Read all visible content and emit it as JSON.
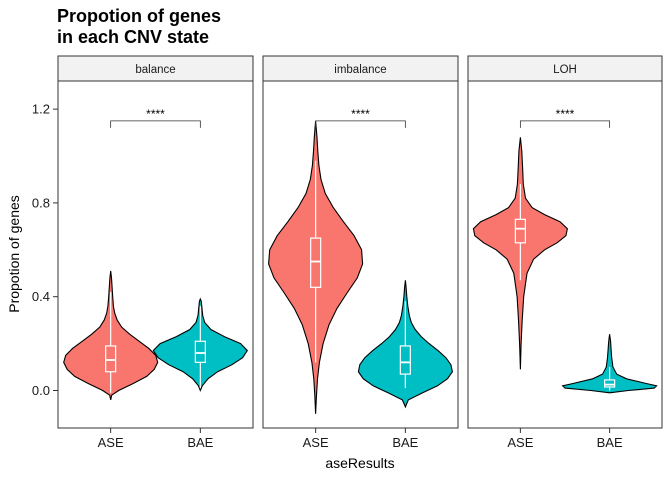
{
  "chart_data": {
    "type": "violin",
    "title_lines": [
      "Propotion of genes",
      "in each CNV state"
    ],
    "xlabel": "aseResults",
    "ylabel": "Propotion of genes",
    "ylim": [
      -0.16,
      1.32
    ],
    "yticks": [
      0.0,
      0.4,
      0.8,
      1.2
    ],
    "ytick_labels": [
      "0.0",
      "0.4",
      "0.8",
      "1.2"
    ],
    "categories": [
      "ASE",
      "BAE"
    ],
    "colors": {
      "ASE": "#F8766D",
      "BAE": "#00BFC4"
    },
    "panels": [
      {
        "name": "balance",
        "significance": {
          "label": "****",
          "y": 1.15,
          "drop": 0.03
        },
        "groups": [
          {
            "category": "ASE",
            "box": {
              "q1": 0.08,
              "median": 0.13,
              "q3": 0.19,
              "whisker_low": -0.01,
              "whisker_high": 0.42
            },
            "density": [
              [
                -0.04,
                0.0
              ],
              [
                -0.02,
                0.02
              ],
              [
                0.0,
                0.16
              ],
              [
                0.03,
                0.45
              ],
              [
                0.06,
                0.72
              ],
              [
                0.09,
                0.87
              ],
              [
                0.12,
                0.94
              ],
              [
                0.15,
                0.9
              ],
              [
                0.18,
                0.76
              ],
              [
                0.21,
                0.57
              ],
              [
                0.24,
                0.38
              ],
              [
                0.27,
                0.22
              ],
              [
                0.3,
                0.13
              ],
              [
                0.33,
                0.08
              ],
              [
                0.36,
                0.055
              ],
              [
                0.4,
                0.04
              ],
              [
                0.44,
                0.028
              ],
              [
                0.48,
                0.016
              ],
              [
                0.51,
                0.0
              ]
            ]
          },
          {
            "category": "BAE",
            "box": {
              "q1": 0.12,
              "median": 0.16,
              "q3": 0.21,
              "whisker_low": 0.01,
              "whisker_high": 0.36
            },
            "density": [
              [
                0.0,
                0.0
              ],
              [
                0.02,
                0.04
              ],
              [
                0.05,
                0.16
              ],
              [
                0.08,
                0.36
              ],
              [
                0.11,
                0.66
              ],
              [
                0.14,
                0.88
              ],
              [
                0.17,
                0.98
              ],
              [
                0.2,
                0.84
              ],
              [
                0.23,
                0.5
              ],
              [
                0.26,
                0.22
              ],
              [
                0.29,
                0.09
              ],
              [
                0.32,
                0.05
              ],
              [
                0.35,
                0.035
              ],
              [
                0.38,
                0.02
              ],
              [
                0.39,
                0.0
              ]
            ]
          }
        ]
      },
      {
        "name": "imbalance",
        "significance": {
          "label": "****",
          "y": 1.15,
          "drop": 0.03
        },
        "groups": [
          {
            "category": "ASE",
            "box": {
              "q1": 0.44,
              "median": 0.55,
              "q3": 0.65,
              "whisker_low": 0.12,
              "whisker_high": 0.98
            },
            "density": [
              [
                -0.1,
                0.0
              ],
              [
                -0.02,
                0.015
              ],
              [
                0.05,
                0.035
              ],
              [
                0.12,
                0.07
              ],
              [
                0.2,
                0.14
              ],
              [
                0.28,
                0.25
              ],
              [
                0.35,
                0.4
              ],
              [
                0.42,
                0.6
              ],
              [
                0.48,
                0.78
              ],
              [
                0.54,
                0.88
              ],
              [
                0.6,
                0.86
              ],
              [
                0.66,
                0.72
              ],
              [
                0.72,
                0.52
              ],
              [
                0.78,
                0.33
              ],
              [
                0.84,
                0.18
              ],
              [
                0.9,
                0.1
              ],
              [
                0.96,
                0.06
              ],
              [
                1.02,
                0.04
              ],
              [
                1.08,
                0.025
              ],
              [
                1.15,
                0.0
              ]
            ]
          },
          {
            "category": "BAE",
            "box": {
              "q1": 0.07,
              "median": 0.12,
              "q3": 0.19,
              "whisker_low": 0.01,
              "whisker_high": 0.38
            },
            "density": [
              [
                -0.07,
                0.0
              ],
              [
                -0.04,
                0.06
              ],
              [
                -0.01,
                0.35
              ],
              [
                0.02,
                0.65
              ],
              [
                0.05,
                0.85
              ],
              [
                0.08,
                0.95
              ],
              [
                0.11,
                0.92
              ],
              [
                0.14,
                0.82
              ],
              [
                0.17,
                0.66
              ],
              [
                0.2,
                0.48
              ],
              [
                0.23,
                0.32
              ],
              [
                0.26,
                0.2
              ],
              [
                0.29,
                0.12
              ],
              [
                0.32,
                0.08
              ],
              [
                0.36,
                0.05
              ],
              [
                0.4,
                0.03
              ],
              [
                0.44,
                0.015
              ],
              [
                0.47,
                0.0
              ]
            ]
          }
        ]
      },
      {
        "name": "LOH",
        "significance": {
          "label": "****",
          "y": 1.15,
          "drop": 0.03
        },
        "groups": [
          {
            "category": "ASE",
            "box": {
              "q1": 0.63,
              "median": 0.69,
              "q3": 0.73,
              "whisker_low": 0.47,
              "whisker_high": 0.88
            },
            "density": [
              [
                0.09,
                0.0
              ],
              [
                0.2,
                0.01
              ],
              [
                0.3,
                0.025
              ],
              [
                0.4,
                0.045
              ],
              [
                0.5,
                0.09
              ],
              [
                0.56,
                0.18
              ],
              [
                0.6,
                0.33
              ],
              [
                0.63,
                0.5
              ],
              [
                0.66,
                0.62
              ],
              [
                0.69,
                0.64
              ],
              [
                0.72,
                0.54
              ],
              [
                0.75,
                0.33
              ],
              [
                0.78,
                0.16
              ],
              [
                0.82,
                0.07
              ],
              [
                0.88,
                0.04
              ],
              [
                0.95,
                0.03
              ],
              [
                1.02,
                0.02
              ],
              [
                1.08,
                0.0
              ]
            ]
          },
          {
            "category": "BAE",
            "box": {
              "q1": 0.015,
              "median": 0.025,
              "q3": 0.045,
              "whisker_low": 0.0,
              "whisker_high": 0.1
            },
            "density": [
              [
                -0.01,
                0.0
              ],
              [
                0.0,
                0.4
              ],
              [
                0.01,
                0.95
              ],
              [
                0.02,
                1.0
              ],
              [
                0.03,
                0.78
              ],
              [
                0.05,
                0.36
              ],
              [
                0.07,
                0.15
              ],
              [
                0.1,
                0.07
              ],
              [
                0.14,
                0.045
              ],
              [
                0.18,
                0.03
              ],
              [
                0.21,
                0.02
              ],
              [
                0.24,
                0.0
              ]
            ]
          }
        ]
      }
    ]
  }
}
